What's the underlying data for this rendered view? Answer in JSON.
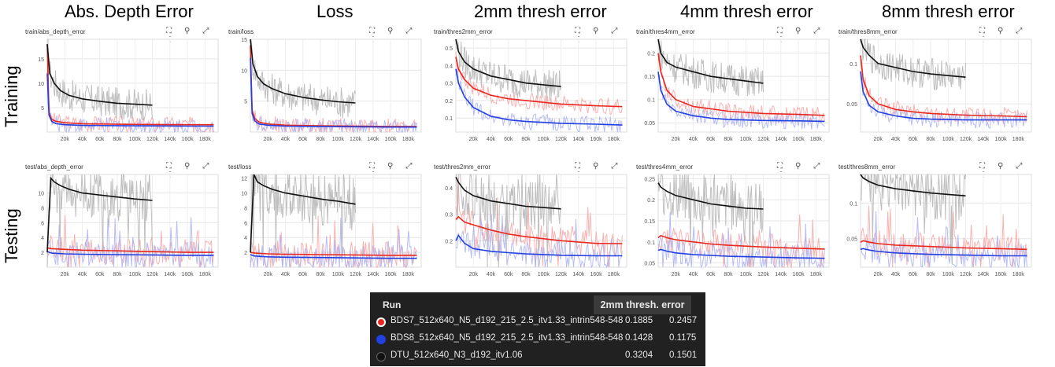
{
  "columns": [
    "Abs. Depth Error",
    "Loss",
    "2mm thresh error",
    "4mm thresh error",
    "8mm thresh error"
  ],
  "rows": [
    "Training",
    "Testing"
  ],
  "icons": [
    "fit-domain-icon",
    "pin-icon",
    "fullscreen-icon",
    "more-icon"
  ],
  "colors": {
    "red": "#e8281e",
    "blue": "#2340e0",
    "black": "#111111",
    "red_raw": "#f7a5a5",
    "blue_raw": "#aab2f2",
    "gray_raw": "#b4b4b4"
  },
  "legend": {
    "header": "Run",
    "metric": "2mm thresh. error",
    "runs": [
      {
        "name": "BDS7_512x640_N5_d192_215_2.5_itv1.33_intrin548-548",
        "v1": "0.1885",
        "v2": "0.2457",
        "color": "#e8281e"
      },
      {
        "name": "BDS8_512x640_N5_d192_215_2.5_itv1.33_intrin548-548",
        "v1": "0.1428",
        "v2": "0.1175",
        "color": "#2340e0"
      },
      {
        "name": "DTU_512x640_N3_d192_itv1.06",
        "v1": "0.3204",
        "v2": "0.1501",
        "color": "#111111"
      }
    ]
  },
  "chart_data": [
    {
      "type": "line",
      "tag": "train/abs_depth_error",
      "xticks": [
        "20k",
        "40k",
        "60k",
        "80k",
        "100k",
        "120k",
        "140k",
        "160k",
        "180k"
      ],
      "ylim": [
        0,
        19
      ],
      "yticks": [
        "5",
        "10",
        "15"
      ],
      "yvals": [
        5,
        10,
        15
      ],
      "series": [
        {
          "color": "red",
          "x": [
            0,
            2000,
            5000,
            10000,
            20000,
            40000,
            80000,
            120000,
            160000,
            190000
          ],
          "y": [
            18,
            4,
            2.6,
            2.2,
            1.9,
            1.7,
            1.6,
            1.55,
            1.5,
            1.5
          ]
        },
        {
          "color": "blue",
          "x": [
            0,
            2000,
            5000,
            10000,
            20000,
            40000,
            80000,
            120000,
            160000,
            190000
          ],
          "y": [
            12,
            3.5,
            2.2,
            1.7,
            1.5,
            1.35,
            1.3,
            1.25,
            1.2,
            1.2
          ]
        },
        {
          "color": "black",
          "x": [
            0,
            3000,
            8000,
            15000,
            25000,
            40000,
            60000,
            80000,
            100000,
            120000
          ],
          "y": [
            18,
            12,
            10,
            8.5,
            7.5,
            6.8,
            6.3,
            5.9,
            5.7,
            5.5
          ]
        }
      ]
    },
    {
      "type": "line",
      "tag": "train/loss",
      "xticks": [
        "20k",
        "40k",
        "60k",
        "80k",
        "100k",
        "120k",
        "140k",
        "160k",
        "180k"
      ],
      "ylim": [
        0,
        15
      ],
      "yticks": [
        "5",
        "10",
        "15"
      ],
      "yvals": [
        5,
        10,
        15
      ],
      "series": [
        {
          "color": "red",
          "x": [
            0,
            2000,
            5000,
            10000,
            20000,
            40000,
            80000,
            120000,
            160000,
            190000
          ],
          "y": [
            14,
            3.5,
            2.2,
            1.6,
            1.3,
            1.1,
            1.0,
            0.95,
            0.9,
            0.9
          ]
        },
        {
          "color": "blue",
          "x": [
            0,
            2000,
            5000,
            10000,
            20000,
            40000,
            80000,
            120000,
            160000,
            190000
          ],
          "y": [
            12,
            3,
            1.8,
            1.3,
            1.1,
            0.95,
            0.9,
            0.85,
            0.8,
            0.8
          ]
        },
        {
          "color": "black",
          "x": [
            0,
            3000,
            8000,
            15000,
            25000,
            40000,
            60000,
            80000,
            100000,
            120000
          ],
          "y": [
            15,
            11,
            9,
            7.8,
            7,
            6.2,
            5.6,
            5.2,
            4.9,
            4.7
          ]
        }
      ]
    },
    {
      "type": "line",
      "tag": "train/thres2mm_error",
      "xticks": [
        "20k",
        "40k",
        "60k",
        "80k",
        "100k",
        "120k",
        "140k",
        "160k",
        "180k"
      ],
      "ylim": [
        0.02,
        0.55
      ],
      "yticks": [
        "0.1",
        "0.2",
        "0.3",
        "0.4",
        "0.5"
      ],
      "yvals": [
        0.1,
        0.2,
        0.3,
        0.4,
        0.5
      ],
      "series": [
        {
          "color": "red",
          "x": [
            0,
            3000,
            10000,
            20000,
            40000,
            60000,
            80000,
            120000,
            160000,
            190000
          ],
          "y": [
            0.45,
            0.38,
            0.32,
            0.27,
            0.23,
            0.21,
            0.2,
            0.18,
            0.17,
            0.165
          ]
        },
        {
          "color": "blue",
          "x": [
            0,
            3000,
            10000,
            20000,
            40000,
            60000,
            80000,
            120000,
            160000,
            190000
          ],
          "y": [
            0.38,
            0.3,
            0.22,
            0.16,
            0.11,
            0.09,
            0.08,
            0.07,
            0.065,
            0.06
          ]
        },
        {
          "color": "black",
          "x": [
            0,
            3000,
            10000,
            20000,
            40000,
            60000,
            80000,
            100000,
            120000
          ],
          "y": [
            0.55,
            0.48,
            0.42,
            0.38,
            0.34,
            0.32,
            0.3,
            0.29,
            0.28
          ]
        }
      ]
    },
    {
      "type": "line",
      "tag": "train/thres4mm_error",
      "xticks": [
        "20k",
        "40k",
        "60k",
        "80k",
        "100k",
        "120k",
        "140k",
        "160k",
        "180k"
      ],
      "ylim": [
        0.03,
        0.23
      ],
      "yticks": [
        "0.05",
        "0.1",
        "0.15",
        "0.2"
      ],
      "yvals": [
        0.05,
        0.1,
        0.15,
        0.2
      ],
      "series": [
        {
          "color": "red",
          "x": [
            0,
            3000,
            10000,
            20000,
            40000,
            60000,
            80000,
            120000,
            160000,
            190000
          ],
          "y": [
            0.2,
            0.16,
            0.12,
            0.1,
            0.085,
            0.08,
            0.075,
            0.07,
            0.068,
            0.066
          ]
        },
        {
          "color": "blue",
          "x": [
            0,
            3000,
            10000,
            20000,
            40000,
            60000,
            80000,
            120000,
            160000,
            190000
          ],
          "y": [
            0.16,
            0.12,
            0.09,
            0.075,
            0.065,
            0.06,
            0.057,
            0.055,
            0.054,
            0.053
          ]
        },
        {
          "color": "black",
          "x": [
            0,
            3000,
            10000,
            20000,
            40000,
            60000,
            80000,
            100000,
            120000
          ],
          "y": [
            0.23,
            0.2,
            0.18,
            0.17,
            0.16,
            0.15,
            0.145,
            0.14,
            0.135
          ]
        }
      ]
    },
    {
      "type": "line",
      "tag": "train/thres8mm_error",
      "xticks": [
        "20k",
        "40k",
        "60k",
        "80k",
        "100k",
        "120k",
        "140k",
        "160k",
        "180k"
      ],
      "ylim": [
        0.015,
        0.13
      ],
      "yticks": [
        "0.05",
        "0.1"
      ],
      "yvals": [
        0.05,
        0.1
      ],
      "series": [
        {
          "color": "red",
          "x": [
            0,
            3000,
            10000,
            20000,
            40000,
            60000,
            80000,
            120000,
            160000,
            190000
          ],
          "y": [
            0.11,
            0.08,
            0.06,
            0.05,
            0.043,
            0.04,
            0.038,
            0.036,
            0.035,
            0.034
          ]
        },
        {
          "color": "blue",
          "x": [
            0,
            3000,
            10000,
            20000,
            40000,
            60000,
            80000,
            120000,
            160000,
            190000
          ],
          "y": [
            0.09,
            0.065,
            0.048,
            0.04,
            0.035,
            0.032,
            0.031,
            0.03,
            0.03,
            0.03
          ]
        },
        {
          "color": "black",
          "x": [
            0,
            3000,
            10000,
            20000,
            40000,
            60000,
            80000,
            100000,
            120000
          ],
          "y": [
            0.13,
            0.12,
            0.11,
            0.1,
            0.095,
            0.09,
            0.087,
            0.085,
            0.083
          ]
        }
      ]
    },
    {
      "type": "line",
      "tag": "test/abs_depth_error",
      "xticks": [
        "20k",
        "40k",
        "60k",
        "80k",
        "100k",
        "120k",
        "140k",
        "160k",
        "180k"
      ],
      "ylim": [
        0,
        12.5
      ],
      "yticks": [
        "2",
        "4",
        "6",
        "8",
        "10"
      ],
      "yvals": [
        2,
        4,
        6,
        8,
        10
      ],
      "series": [
        {
          "color": "red",
          "x": [
            0,
            5000,
            20000,
            40000,
            80000,
            120000,
            160000,
            190000
          ],
          "y": [
            2.6,
            2.5,
            2.4,
            2.3,
            2.2,
            2.1,
            2.0,
            2.0
          ]
        },
        {
          "color": "blue",
          "x": [
            0,
            5000,
            20000,
            40000,
            80000,
            120000,
            160000,
            190000
          ],
          "y": [
            2.1,
            1.9,
            1.8,
            1.75,
            1.7,
            1.65,
            1.6,
            1.6
          ]
        },
        {
          "color": "black",
          "x": [
            0,
            4000,
            8000,
            15000,
            25000,
            40000,
            55000,
            70000,
            85000,
            100000,
            110000,
            120000
          ],
          "y": [
            2,
            12,
            11.5,
            11,
            10.5,
            10,
            9.8,
            9.6,
            9.4,
            9.2,
            9.1,
            9.0
          ]
        }
      ]
    },
    {
      "type": "line",
      "tag": "test/loss",
      "xticks": [
        "20k",
        "40k",
        "60k",
        "80k",
        "100k",
        "120k",
        "140k",
        "160k",
        "180k"
      ],
      "ylim": [
        0,
        12.5
      ],
      "yticks": [
        "2",
        "4",
        "6",
        "8",
        "10",
        "12"
      ],
      "yvals": [
        2,
        4,
        6,
        8,
        10,
        12
      ],
      "series": [
        {
          "color": "red",
          "x": [
            0,
            5000,
            20000,
            40000,
            80000,
            120000,
            160000,
            190000
          ],
          "y": [
            2,
            1.9,
            1.8,
            1.75,
            1.7,
            1.65,
            1.6,
            1.6
          ]
        },
        {
          "color": "blue",
          "x": [
            0,
            5000,
            20000,
            40000,
            80000,
            120000,
            160000,
            190000
          ],
          "y": [
            1.7,
            1.5,
            1.4,
            1.35,
            1.3,
            1.25,
            1.2,
            1.2
          ]
        },
        {
          "color": "black",
          "x": [
            0,
            4000,
            8000,
            15000,
            25000,
            40000,
            55000,
            70000,
            85000,
            100000,
            110000,
            120000
          ],
          "y": [
            2,
            12.5,
            11.5,
            11,
            10.5,
            10,
            9.7,
            9.4,
            9.1,
            8.9,
            8.7,
            8.5
          ]
        }
      ]
    },
    {
      "type": "line",
      "tag": "test/thres2mm_error",
      "xticks": [
        "20k",
        "40k",
        "60k",
        "80k",
        "100k",
        "120k",
        "140k",
        "160k",
        "180k"
      ],
      "ylim": [
        0.1,
        0.45
      ],
      "yticks": [
        "0.2",
        "0.3",
        "0.4"
      ],
      "yvals": [
        0.2,
        0.3,
        0.4
      ],
      "series": [
        {
          "color": "red",
          "x": [
            0,
            3000,
            10000,
            20000,
            40000,
            60000,
            80000,
            120000,
            160000,
            190000
          ],
          "y": [
            0.28,
            0.29,
            0.27,
            0.26,
            0.24,
            0.225,
            0.215,
            0.2,
            0.19,
            0.189
          ]
        },
        {
          "color": "blue",
          "x": [
            0,
            3000,
            10000,
            20000,
            40000,
            60000,
            80000,
            120000,
            160000,
            190000
          ],
          "y": [
            0.2,
            0.22,
            0.19,
            0.17,
            0.16,
            0.155,
            0.15,
            0.145,
            0.143,
            0.143
          ]
        },
        {
          "color": "black",
          "x": [
            0,
            3000,
            10000,
            20000,
            40000,
            60000,
            80000,
            100000,
            120000
          ],
          "y": [
            0.44,
            0.42,
            0.39,
            0.37,
            0.35,
            0.34,
            0.33,
            0.325,
            0.32
          ]
        }
      ]
    },
    {
      "type": "line",
      "tag": "test/thres4mm_error",
      "xticks": [
        "20k",
        "40k",
        "60k",
        "80k",
        "100k",
        "120k",
        "140k",
        "160k",
        "180k"
      ],
      "ylim": [
        0.04,
        0.26
      ],
      "yticks": [
        "0.05",
        "0.1",
        "0.15",
        "0.2",
        "0.25"
      ],
      "yvals": [
        0.05,
        0.1,
        0.15,
        0.2,
        0.25
      ],
      "series": [
        {
          "color": "red",
          "x": [
            0,
            3000,
            10000,
            20000,
            40000,
            60000,
            80000,
            120000,
            160000,
            190000
          ],
          "y": [
            0.11,
            0.115,
            0.11,
            0.105,
            0.1,
            0.095,
            0.092,
            0.088,
            0.085,
            0.083
          ]
        },
        {
          "color": "blue",
          "x": [
            0,
            3000,
            10000,
            20000,
            40000,
            60000,
            80000,
            120000,
            160000,
            190000
          ],
          "y": [
            0.08,
            0.082,
            0.078,
            0.074,
            0.07,
            0.068,
            0.066,
            0.064,
            0.062,
            0.061
          ]
        },
        {
          "color": "black",
          "x": [
            0,
            3000,
            10000,
            20000,
            40000,
            60000,
            80000,
            100000,
            120000
          ],
          "y": [
            0.24,
            0.23,
            0.22,
            0.21,
            0.2,
            0.19,
            0.185,
            0.18,
            0.178
          ]
        }
      ]
    },
    {
      "type": "line",
      "tag": "test/thres8mm_error",
      "xticks": [
        "20k",
        "40k",
        "60k",
        "80k",
        "100k",
        "120k",
        "140k",
        "160k",
        "180k"
      ],
      "ylim": [
        0.01,
        0.14
      ],
      "yticks": [
        "0.05",
        "0.1"
      ],
      "yvals": [
        0.05,
        0.1
      ],
      "series": [
        {
          "color": "red",
          "x": [
            0,
            3000,
            10000,
            20000,
            40000,
            60000,
            80000,
            120000,
            160000,
            190000
          ],
          "y": [
            0.045,
            0.047,
            0.045,
            0.043,
            0.041,
            0.04,
            0.039,
            0.037,
            0.036,
            0.035
          ]
        },
        {
          "color": "blue",
          "x": [
            0,
            3000,
            10000,
            20000,
            40000,
            60000,
            80000,
            120000,
            160000,
            190000
          ],
          "y": [
            0.035,
            0.036,
            0.034,
            0.032,
            0.03,
            0.029,
            0.028,
            0.027,
            0.026,
            0.026
          ]
        },
        {
          "color": "black",
          "x": [
            0,
            3000,
            10000,
            20000,
            40000,
            60000,
            80000,
            100000,
            120000
          ],
          "y": [
            0.14,
            0.135,
            0.13,
            0.125,
            0.12,
            0.117,
            0.114,
            0.112,
            0.11
          ]
        }
      ]
    }
  ]
}
